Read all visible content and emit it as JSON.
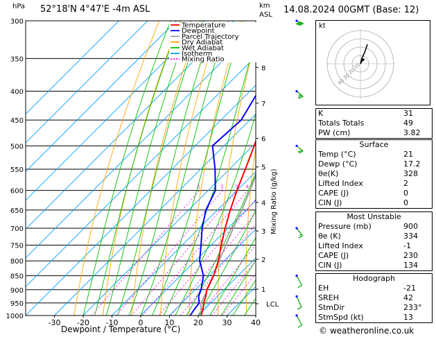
{
  "header": {
    "pressure_unit": "hPa",
    "location": "52°18'N  4°47'E  -4m  ASL",
    "height_unit_km": "km",
    "height_unit_asl": "ASL",
    "datetime": "14.08.2024  00GMT  (Base: 12)"
  },
  "footer": {
    "xlabel": "Dewpoint / Temperature (°C)",
    "copyright": "© weatheronline.co.uk"
  },
  "colors": {
    "temperature": "#ff0000",
    "dewpoint": "#0000ff",
    "parcel": "#a0a0a0",
    "dry_adiabat": "#ffa500",
    "wet_adiabat": "#00c000",
    "isotherm": "#00a0ff",
    "mixing_ratio": "#ff00ff"
  },
  "chart_data": {
    "type": "skew-t",
    "pressure_levels": [
      300,
      350,
      400,
      450,
      500,
      550,
      600,
      650,
      700,
      750,
      800,
      850,
      900,
      950,
      1000
    ],
    "temperature_ticks": [
      -30,
      -20,
      -10,
      0,
      10,
      20,
      30,
      40
    ],
    "height_km_ticks": [
      {
        "km": "8",
        "p": 363
      },
      {
        "km": "7",
        "p": 420
      },
      {
        "km": "6",
        "p": 485
      },
      {
        "km": "5",
        "p": 545
      },
      {
        "km": "4",
        "p": 630
      },
      {
        "km": "3",
        "p": 708
      },
      {
        "km": "2",
        "p": 795
      },
      {
        "km": "1",
        "p": 898
      },
      {
        "km": "LCL",
        "p": 953
      }
    ],
    "mixing_ratio_labels": [
      "1",
      "2",
      "3",
      "4",
      "6",
      "8",
      "10",
      "15",
      "20",
      "25"
    ],
    "mixing_ratio_axis_label": "Mixing Ratio (g/kg)",
    "legend": [
      "Temperature",
      "Dewpoint",
      "Parcel Trajectory",
      "Dry Adiabat",
      "Wet Adiabat",
      "Isotherm",
      "Mixing Ratio"
    ],
    "temperature_profile": [
      {
        "p": 1000,
        "t": 21
      },
      {
        "p": 975,
        "t": 19.5
      },
      {
        "p": 950,
        "t": 17.5
      },
      {
        "p": 925,
        "t": 16
      },
      {
        "p": 900,
        "t": 14
      },
      {
        "p": 850,
        "t": 11.5
      },
      {
        "p": 800,
        "t": 8
      },
      {
        "p": 750,
        "t": 3.5
      },
      {
        "p": 700,
        "t": -1
      },
      {
        "p": 650,
        "t": -5.5
      },
      {
        "p": 600,
        "t": -10
      },
      {
        "p": 550,
        "t": -14.5
      },
      {
        "p": 500,
        "t": -19.5
      },
      {
        "p": 450,
        "t": -25.5
      },
      {
        "p": 400,
        "t": -32.5
      },
      {
        "p": 350,
        "t": -42
      },
      {
        "p": 300,
        "t": -51
      }
    ],
    "dewpoint_profile": [
      {
        "p": 1000,
        "t": 17.2
      },
      {
        "p": 975,
        "t": 16.5
      },
      {
        "p": 950,
        "t": 16
      },
      {
        "p": 925,
        "t": 13.5
      },
      {
        "p": 900,
        "t": 12
      },
      {
        "p": 850,
        "t": 8
      },
      {
        "p": 800,
        "t": 1.5
      },
      {
        "p": 750,
        "t": -3.5
      },
      {
        "p": 700,
        "t": -9
      },
      {
        "p": 650,
        "t": -14
      },
      {
        "p": 600,
        "t": -17.5
      },
      {
        "p": 550,
        "t": -25
      },
      {
        "p": 500,
        "t": -34
      },
      {
        "p": 450,
        "t": -33
      },
      {
        "p": 400,
        "t": -37
      },
      {
        "p": 350,
        "t": -48
      },
      {
        "p": 300,
        "t": -55
      }
    ],
    "parcel_profile": [
      {
        "p": 1000,
        "t": 21
      },
      {
        "p": 953,
        "t": 16.8
      },
      {
        "p": 900,
        "t": 14.2
      },
      {
        "p": 850,
        "t": 11.5
      },
      {
        "p": 800,
        "t": 8.2
      },
      {
        "p": 750,
        "t": 5.2
      },
      {
        "p": 700,
        "t": 1.8
      },
      {
        "p": 650,
        "t": -1.5
      },
      {
        "p": 600,
        "t": -5.5
      },
      {
        "p": 550,
        "t": -10
      },
      {
        "p": 500,
        "t": -15
      },
      {
        "p": 450,
        "t": -21
      },
      {
        "p": 400,
        "t": -28
      },
      {
        "p": 350,
        "t": -36
      },
      {
        "p": 300,
        "t": -45
      }
    ],
    "wind_barbs": [
      {
        "p": 300,
        "dir": 260,
        "kt": 40
      },
      {
        "p": 400,
        "dir": 250,
        "kt": 25
      },
      {
        "p": 500,
        "dir": 250,
        "kt": 20
      },
      {
        "p": 700,
        "dir": 240,
        "kt": 15
      },
      {
        "p": 850,
        "dir": 230,
        "kt": 10
      },
      {
        "p": 925,
        "dir": 225,
        "kt": 12
      },
      {
        "p": 1000,
        "dir": 230,
        "kt": 10
      }
    ]
  },
  "hodograph": {
    "unit": "kt",
    "ring_labels": [
      "10",
      "20",
      "30",
      "40"
    ],
    "trace": [
      {
        "u": 0,
        "v": 0
      },
      {
        "u": 1,
        "v": 4
      },
      {
        "u": 3,
        "v": 8
      },
      {
        "u": 5,
        "v": 14
      }
    ],
    "storm_motion": {
      "u": 2,
      "v": 3
    }
  },
  "indices": [
    {
      "label": "K",
      "value": "31"
    },
    {
      "label": "Totals Totals",
      "value": "49"
    },
    {
      "label": "PW (cm)",
      "value": "3.82"
    }
  ],
  "surface": {
    "title": "Surface",
    "rows": [
      {
        "label": "Temp (°C)",
        "value": "21"
      },
      {
        "label": "Dewp (°C)",
        "value": "17.2"
      },
      {
        "label": "θe(K)",
        "value": "328"
      },
      {
        "label": "Lifted Index",
        "value": "2"
      },
      {
        "label": "CAPE (J)",
        "value": "0"
      },
      {
        "label": "CIN (J)",
        "value": "0"
      }
    ]
  },
  "most_unstable": {
    "title": "Most Unstable",
    "rows": [
      {
        "label": "Pressure (mb)",
        "value": "900"
      },
      {
        "label": "θe (K)",
        "value": "334"
      },
      {
        "label": "Lifted Index",
        "value": "-1"
      },
      {
        "label": "CAPE (J)",
        "value": "230"
      },
      {
        "label": "CIN (J)",
        "value": "134"
      }
    ]
  },
  "hodograph_indices": {
    "title": "Hodograph",
    "rows": [
      {
        "label": "EH",
        "value": "-21"
      },
      {
        "label": "SREH",
        "value": "42"
      },
      {
        "label": "StmDir",
        "value": "233°"
      },
      {
        "label": "StmSpd (kt)",
        "value": "13"
      }
    ]
  }
}
